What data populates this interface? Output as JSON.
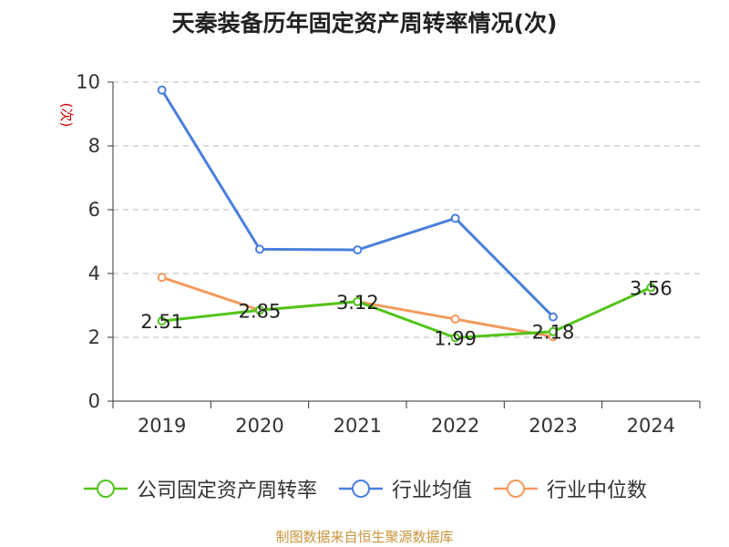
{
  "title": "天秦装备历年固定资产周转率情况(次)",
  "source": "制图数据来自恒生聚源数据库",
  "chart_data": {
    "type": "line",
    "title": "天秦装备历年固定资产周转率情况(次)",
    "ylabel": "(次)",
    "xlabel": "",
    "ylim": [
      0,
      10
    ],
    "yticks": [
      0,
      2,
      4,
      6,
      8,
      10
    ],
    "categories": [
      "2019",
      "2020",
      "2021",
      "2022",
      "2023",
      "2024"
    ],
    "series": [
      {
        "name": "公司固定资产周转率",
        "color": "#52c41a",
        "values": [
          2.51,
          2.85,
          3.12,
          1.99,
          2.18,
          3.56
        ],
        "labels": [
          "2.51",
          "2.85",
          "3.12",
          "1.99",
          "2.18",
          "3.56"
        ]
      },
      {
        "name": "行业均值",
        "color": "#4a7fdc",
        "values": [
          9.75,
          4.76,
          4.74,
          5.73,
          2.64,
          null
        ]
      },
      {
        "name": "行业中位数",
        "color": "#f39a5e",
        "values": [
          3.88,
          2.85,
          3.12,
          2.57,
          2.02,
          null
        ]
      }
    ],
    "grid": true,
    "legend": "bottom"
  }
}
